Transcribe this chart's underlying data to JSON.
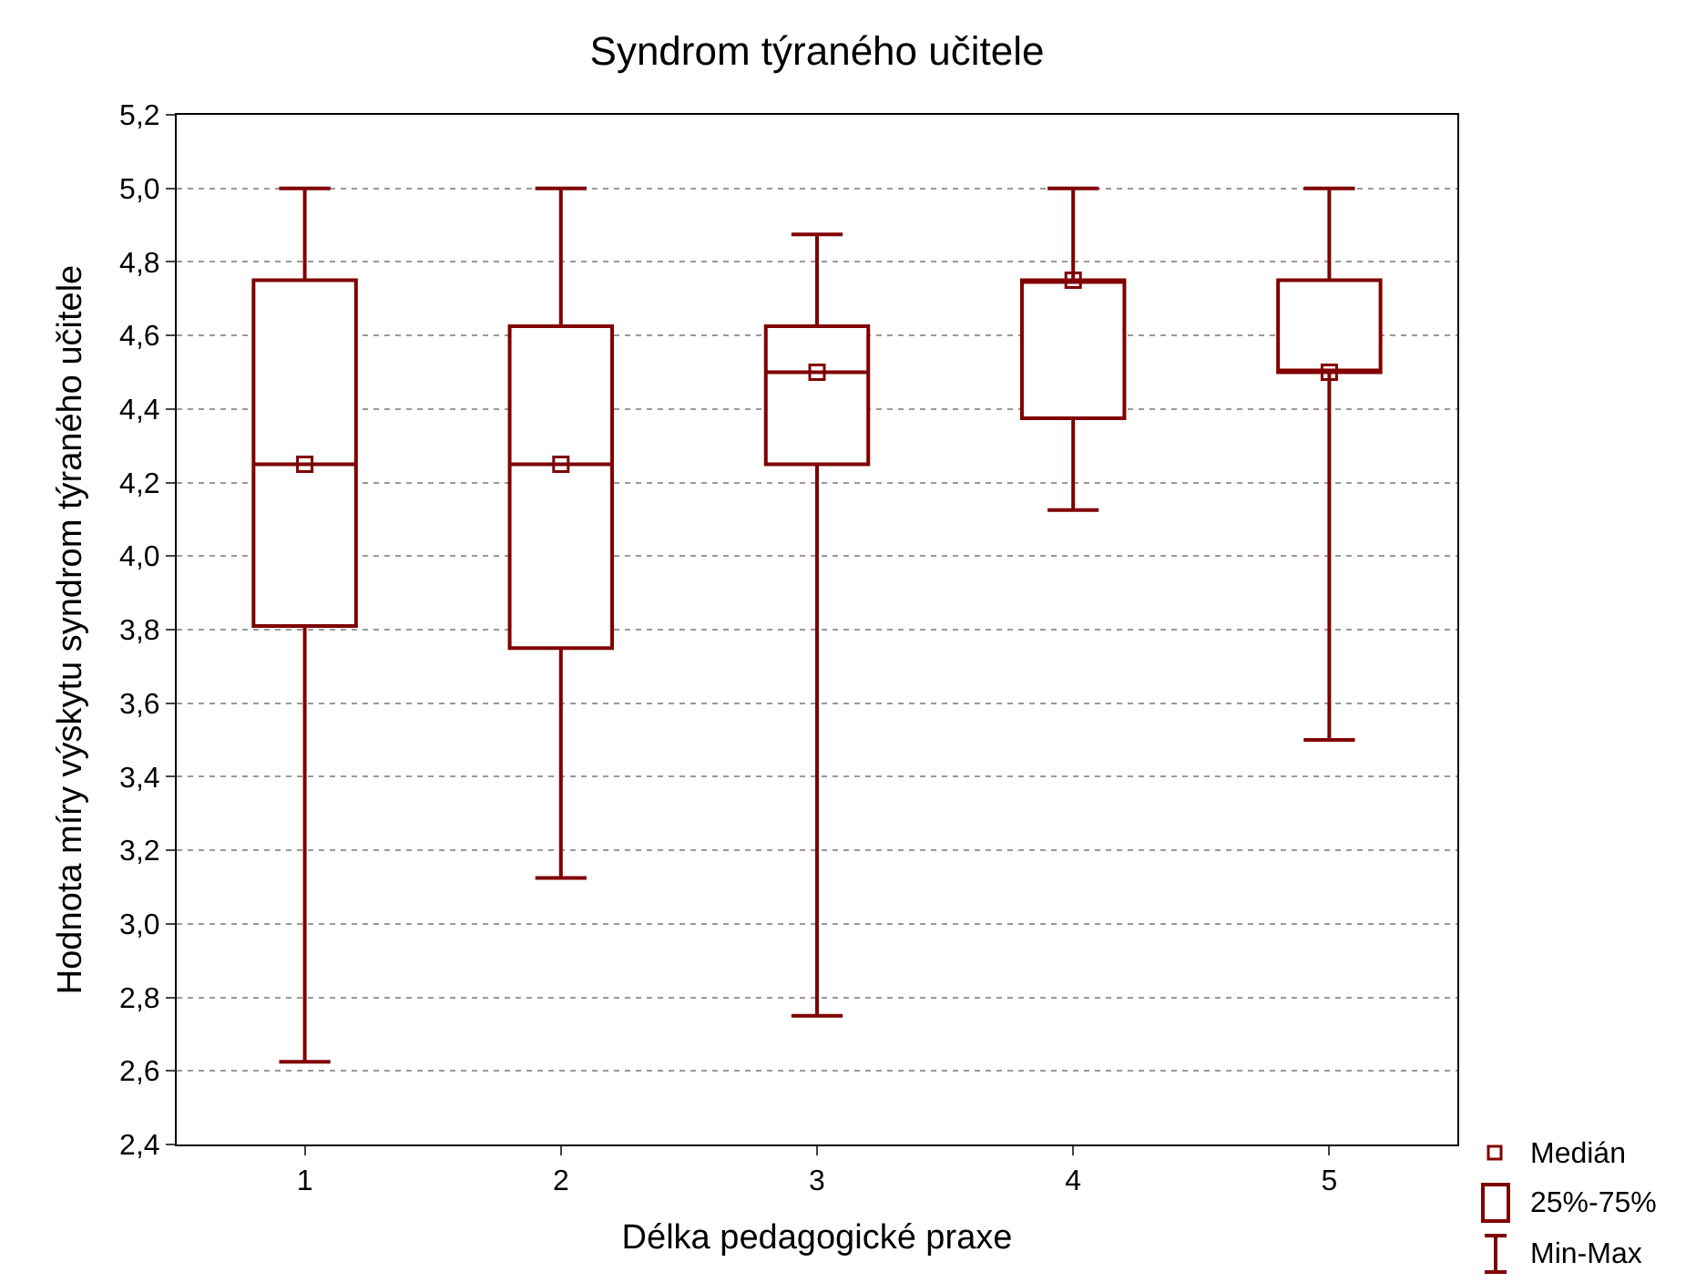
{
  "chart_data": {
    "type": "box",
    "title": "Syndrom týraného učitele",
    "xlabel": "Délka pedagogické praxe",
    "ylabel": "Hodnota míry výskytu syndrom týraného učitele",
    "categories": [
      "1",
      "2",
      "3",
      "4",
      "5"
    ],
    "series": [
      {
        "color": "#800000",
        "boxes": [
          {
            "low": 2.625,
            "q1": 3.81,
            "median": 4.25,
            "q3": 4.75,
            "high": 5.0
          },
          {
            "low": 3.125,
            "q1": 3.75,
            "median": 4.25,
            "q3": 4.625,
            "high": 5.0
          },
          {
            "low": 2.75,
            "q1": 4.25,
            "median": 4.5,
            "q3": 4.625,
            "high": 4.875
          },
          {
            "low": 4.125,
            "q1": 4.375,
            "median": 4.75,
            "q3": 4.75,
            "high": 5.0
          },
          {
            "low": 3.5,
            "q1": 4.5,
            "median": 4.5,
            "q3": 4.75,
            "high": 5.0
          }
        ]
      },
      {
        "type": "scatter",
        "color": "#800000",
        "x": [
          "1",
          "2",
          "3",
          "4",
          "5"
        ],
        "values": [
          4.25,
          4.25,
          4.5,
          4.75,
          4.5
        ]
      }
    ],
    "ylim": [
      2.4,
      5.2
    ],
    "yticks": [
      {
        "value": 2.4,
        "label": "2,4"
      },
      {
        "value": 2.6,
        "label": "2,6"
      },
      {
        "value": 2.8,
        "label": "2,8"
      },
      {
        "value": 3.0,
        "label": "3,0"
      },
      {
        "value": 3.2,
        "label": "3,2"
      },
      {
        "value": 3.4,
        "label": "3,4"
      },
      {
        "value": 3.6,
        "label": "3,6"
      },
      {
        "value": 3.8,
        "label": "3,8"
      },
      {
        "value": 4.0,
        "label": "4,0"
      },
      {
        "value": 4.2,
        "label": "4,2"
      },
      {
        "value": 4.4,
        "label": "4,4"
      },
      {
        "value": 4.6,
        "label": "4,6"
      },
      {
        "value": 4.8,
        "label": "4,8"
      },
      {
        "value": 5.0,
        "label": "5,0"
      },
      {
        "value": 5.2,
        "label": "5,2"
      }
    ],
    "grid": "y",
    "marker": "square",
    "annotations": [
      "Medián",
      "25%-75%",
      "Min-Max"
    ]
  }
}
